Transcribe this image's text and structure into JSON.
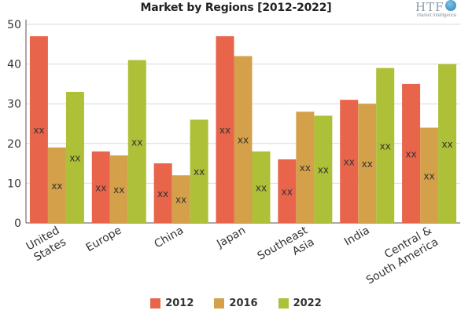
{
  "chart_data": {
    "type": "bar",
    "title": "Market by Regions [2012-2022]",
    "categories": [
      "United States",
      "Europe",
      "China",
      "Japan",
      "Southeast Asia",
      "India",
      "Central & South America"
    ],
    "series": [
      {
        "name": "2012",
        "color": "#e8654b",
        "values": [
          47,
          18,
          15,
          47,
          16,
          31,
          35
        ]
      },
      {
        "name": "2016",
        "color": "#d4a04a",
        "values": [
          19,
          17,
          12,
          42,
          28,
          30,
          24
        ]
      },
      {
        "name": "2022",
        "color": "#aebf38",
        "values": [
          33,
          41,
          26,
          18,
          27,
          39,
          40
        ]
      }
    ],
    "data_label": "xx",
    "ylim": [
      0,
      50
    ],
    "yticks": [
      0,
      10,
      20,
      30,
      40,
      50
    ],
    "grid": true,
    "legend": "bottom",
    "xlabel": "",
    "ylabel": ""
  },
  "logo": {
    "text": "HTF",
    "subtitle": "Market Intelligence"
  }
}
